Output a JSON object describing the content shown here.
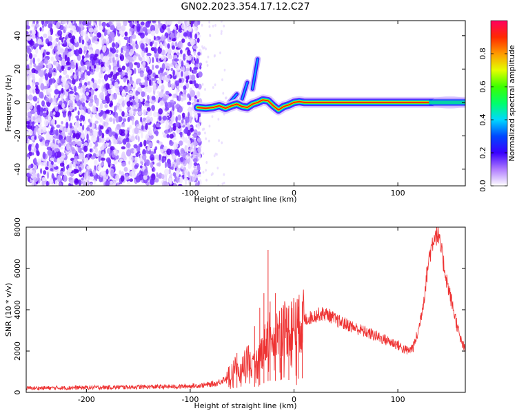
{
  "title": "GN02.2023.354.17.12.C27",
  "chart_data": [
    {
      "type": "heatmap",
      "panel": "spectrogram",
      "xlabel": "Height of straight line (km)",
      "ylabel": "Frequency (Hz)",
      "xlim": [
        -258,
        165
      ],
      "ylim": [
        -50,
        49
      ],
      "xticks": [
        -200,
        -100,
        0,
        100
      ],
      "yticks": [
        -40,
        -20,
        0,
        20,
        40
      ],
      "xtick_labels": [
        "-200",
        "-100",
        "0",
        "100"
      ],
      "ytick_labels": [
        "-40",
        "-20",
        "0",
        "20",
        "40"
      ],
      "noise_region_x": [
        -258,
        -90
      ],
      "noise_cut_x": -90,
      "noise_sparse_until_x": -65,
      "carrier_segments": [
        {
          "x": -93,
          "y": -3.0
        },
        {
          "x": -85,
          "y": -3.5
        },
        {
          "x": -78,
          "y": -3.0
        },
        {
          "x": -72,
          "y": -2.0
        },
        {
          "x": -66,
          "y": -3.5
        },
        {
          "x": -60,
          "y": -2.0
        },
        {
          "x": -55,
          "y": -1.0
        },
        {
          "x": -50,
          "y": -2.5
        },
        {
          "x": -45,
          "y": -3.0
        },
        {
          "x": -40,
          "y": -1.0
        },
        {
          "x": -35,
          "y": 0.0
        },
        {
          "x": -30,
          "y": 1.5
        },
        {
          "x": -25,
          "y": 1.0
        },
        {
          "x": -20,
          "y": -2.0
        },
        {
          "x": -15,
          "y": -4.5
        },
        {
          "x": -10,
          "y": -2.5
        },
        {
          "x": -5,
          "y": -1.5
        },
        {
          "x": 0,
          "y": 0.0
        },
        {
          "x": 5,
          "y": 0.5
        },
        {
          "x": 10,
          "y": 0.0
        },
        {
          "x": 20,
          "y": 0.0
        },
        {
          "x": 165,
          "y": 0.0
        }
      ],
      "side_branches": [
        {
          "x1": -62,
          "y1": 0,
          "x2": -55,
          "y2": 5
        },
        {
          "x1": -50,
          "y1": 2,
          "x2": -45,
          "y2": 12
        },
        {
          "x1": -40,
          "y1": 8,
          "x2": -35,
          "y2": 26
        }
      ]
    },
    {
      "type": "colorbar",
      "label": "Normalized spectral amplitude",
      "range": [
        0.0,
        1.0
      ],
      "ticks": [
        0.0,
        0.2,
        0.4,
        0.6,
        0.8
      ],
      "tick_labels": [
        "0.0",
        "0.2",
        "0.4",
        "0.6",
        "0.8"
      ],
      "colors": [
        "#ffffff",
        "#b07cff",
        "#3a00ff",
        "#0046ff",
        "#00d8ff",
        "#00ff6a",
        "#3bff00",
        "#e4ff00",
        "#ff9a00",
        "#ff2a00",
        "#ff0060"
      ]
    },
    {
      "type": "line",
      "panel": "snr",
      "xlabel": "Height of straight line (km)",
      "ylabel": "SNR (10 * v/v)",
      "xlim": [
        -258,
        165
      ],
      "ylim": [
        0,
        8000
      ],
      "xticks": [
        -200,
        -100,
        0,
        100
      ],
      "yticks": [
        0,
        2000,
        4000,
        6000,
        8000
      ],
      "xtick_labels": [
        "-200",
        "-100",
        "0",
        "100"
      ],
      "ytick_labels": [
        "0",
        "2000",
        "4000",
        "6000",
        "8000"
      ],
      "color": "#ee3333",
      "series": [
        {
          "name": "SNR",
          "x": [
            -258,
            -200,
            -150,
            -110,
            -90,
            -75,
            -65,
            -58,
            -52,
            -45,
            -40,
            -35,
            -30,
            -26,
            -24,
            -20,
            -15,
            -10,
            -5,
            0,
            5,
            10,
            15,
            20,
            25,
            30,
            35,
            40,
            50,
            60,
            70,
            80,
            90,
            100,
            105,
            110,
            115,
            120,
            125,
            130,
            135,
            138,
            142,
            148,
            155,
            160,
            165
          ],
          "y": [
            200,
            230,
            260,
            280,
            330,
            420,
            700,
            1300,
            900,
            1800,
            1200,
            1600,
            2100,
            2600,
            2900,
            2700,
            2900,
            3200,
            3000,
            3300,
            3300,
            3500,
            3600,
            3700,
            3800,
            3800,
            3700,
            3500,
            3300,
            3100,
            2900,
            2700,
            2500,
            2300,
            2100,
            2000,
            2200,
            3000,
            4500,
            6500,
            7600,
            7700,
            6800,
            5200,
            3700,
            2600,
            2000
          ]
        }
      ],
      "spikes": [
        {
          "x": -55,
          "y": 1900
        },
        {
          "x": -38,
          "y": 3200
        },
        {
          "x": -33,
          "y": 4100
        },
        {
          "x": -29,
          "y": 4800
        },
        {
          "x": -25,
          "y": 6900
        },
        {
          "x": -23,
          "y": 4400
        },
        {
          "x": -18,
          "y": 4800
        },
        {
          "x": -12,
          "y": 4100
        },
        {
          "x": -5,
          "y": 4200
        },
        {
          "x": 4,
          "y": 4500
        },
        {
          "x": 8,
          "y": 4400
        }
      ]
    }
  ]
}
